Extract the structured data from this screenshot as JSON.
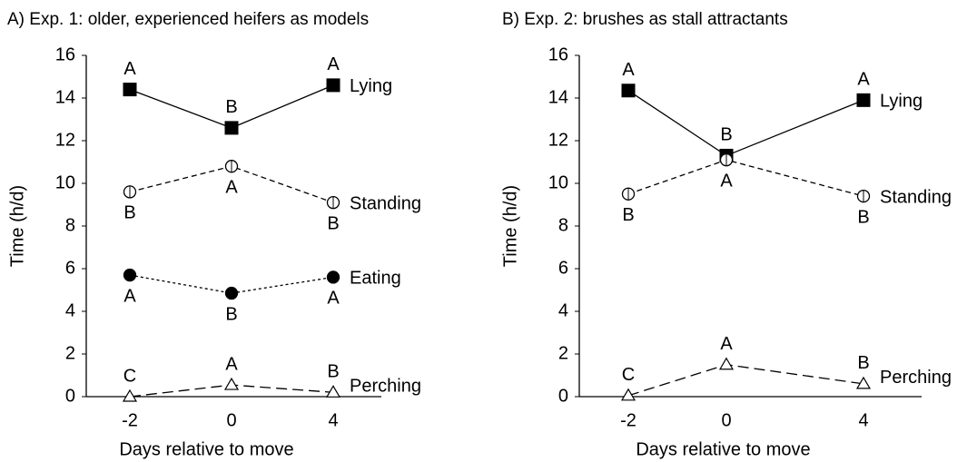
{
  "chart_data": [
    {
      "type": "line",
      "title": "A) Exp. 1: older, experienced heifers as models",
      "xlabel": "Days relative to move",
      "ylabel": "Time (h/d)",
      "categories": [
        "-2",
        "0",
        "4"
      ],
      "ylim": [
        0,
        16
      ],
      "yticks": [
        0,
        2,
        4,
        6,
        8,
        10,
        12,
        14,
        16
      ],
      "series": [
        {
          "name": "Lying",
          "color": "#000000",
          "marker": "square",
          "filled": true,
          "dash": "solid",
          "values": [
            14.4,
            12.6,
            14.6
          ],
          "letters": [
            "A",
            "B",
            "A"
          ],
          "letter_position": "above"
        },
        {
          "name": "Standing",
          "color": "#000000",
          "marker": "circle",
          "filled": false,
          "dash": "dashed",
          "values": [
            9.6,
            10.8,
            9.1
          ],
          "letters": [
            "B",
            "A",
            "B"
          ],
          "letter_position": "below"
        },
        {
          "name": "Eating",
          "color": "#000000",
          "marker": "circle",
          "filled": true,
          "dash": "dotted",
          "values": [
            5.7,
            4.85,
            5.6
          ],
          "letters": [
            "A",
            "B",
            "A"
          ],
          "letter_position": "below"
        },
        {
          "name": "Perching",
          "color": "#000000",
          "marker": "triangle",
          "filled": false,
          "dash": "longdash",
          "values": [
            0,
            0.55,
            0.2
          ],
          "letters": [
            "C",
            "A",
            "B"
          ],
          "letter_position": "above"
        }
      ]
    },
    {
      "type": "line",
      "title": "B) Exp. 2: brushes as stall attractants",
      "xlabel": "Days relative to move",
      "ylabel": "Time (h/d)",
      "categories": [
        "-2",
        "0",
        "4"
      ],
      "ylim": [
        0,
        16
      ],
      "yticks": [
        0,
        2,
        4,
        6,
        8,
        10,
        12,
        14,
        16
      ],
      "series": [
        {
          "name": "Lying",
          "color": "#000000",
          "marker": "square",
          "filled": true,
          "dash": "solid",
          "values": [
            14.35,
            11.3,
            13.9
          ],
          "letters": [
            "A",
            "B",
            "A"
          ],
          "letter_position": "above"
        },
        {
          "name": "Standing",
          "color": "#000000",
          "marker": "circle",
          "filled": false,
          "dash": "dashed",
          "values": [
            9.5,
            11.1,
            9.4
          ],
          "letters": [
            "B",
            "A",
            "B"
          ],
          "letter_position": "below"
        },
        {
          "name": "Perching",
          "color": "#000000",
          "marker": "triangle",
          "filled": false,
          "dash": "longdash",
          "values": [
            0.05,
            1.5,
            0.6
          ],
          "letters": [
            "C",
            "A",
            "B"
          ],
          "letter_position": "above"
        }
      ]
    }
  ]
}
